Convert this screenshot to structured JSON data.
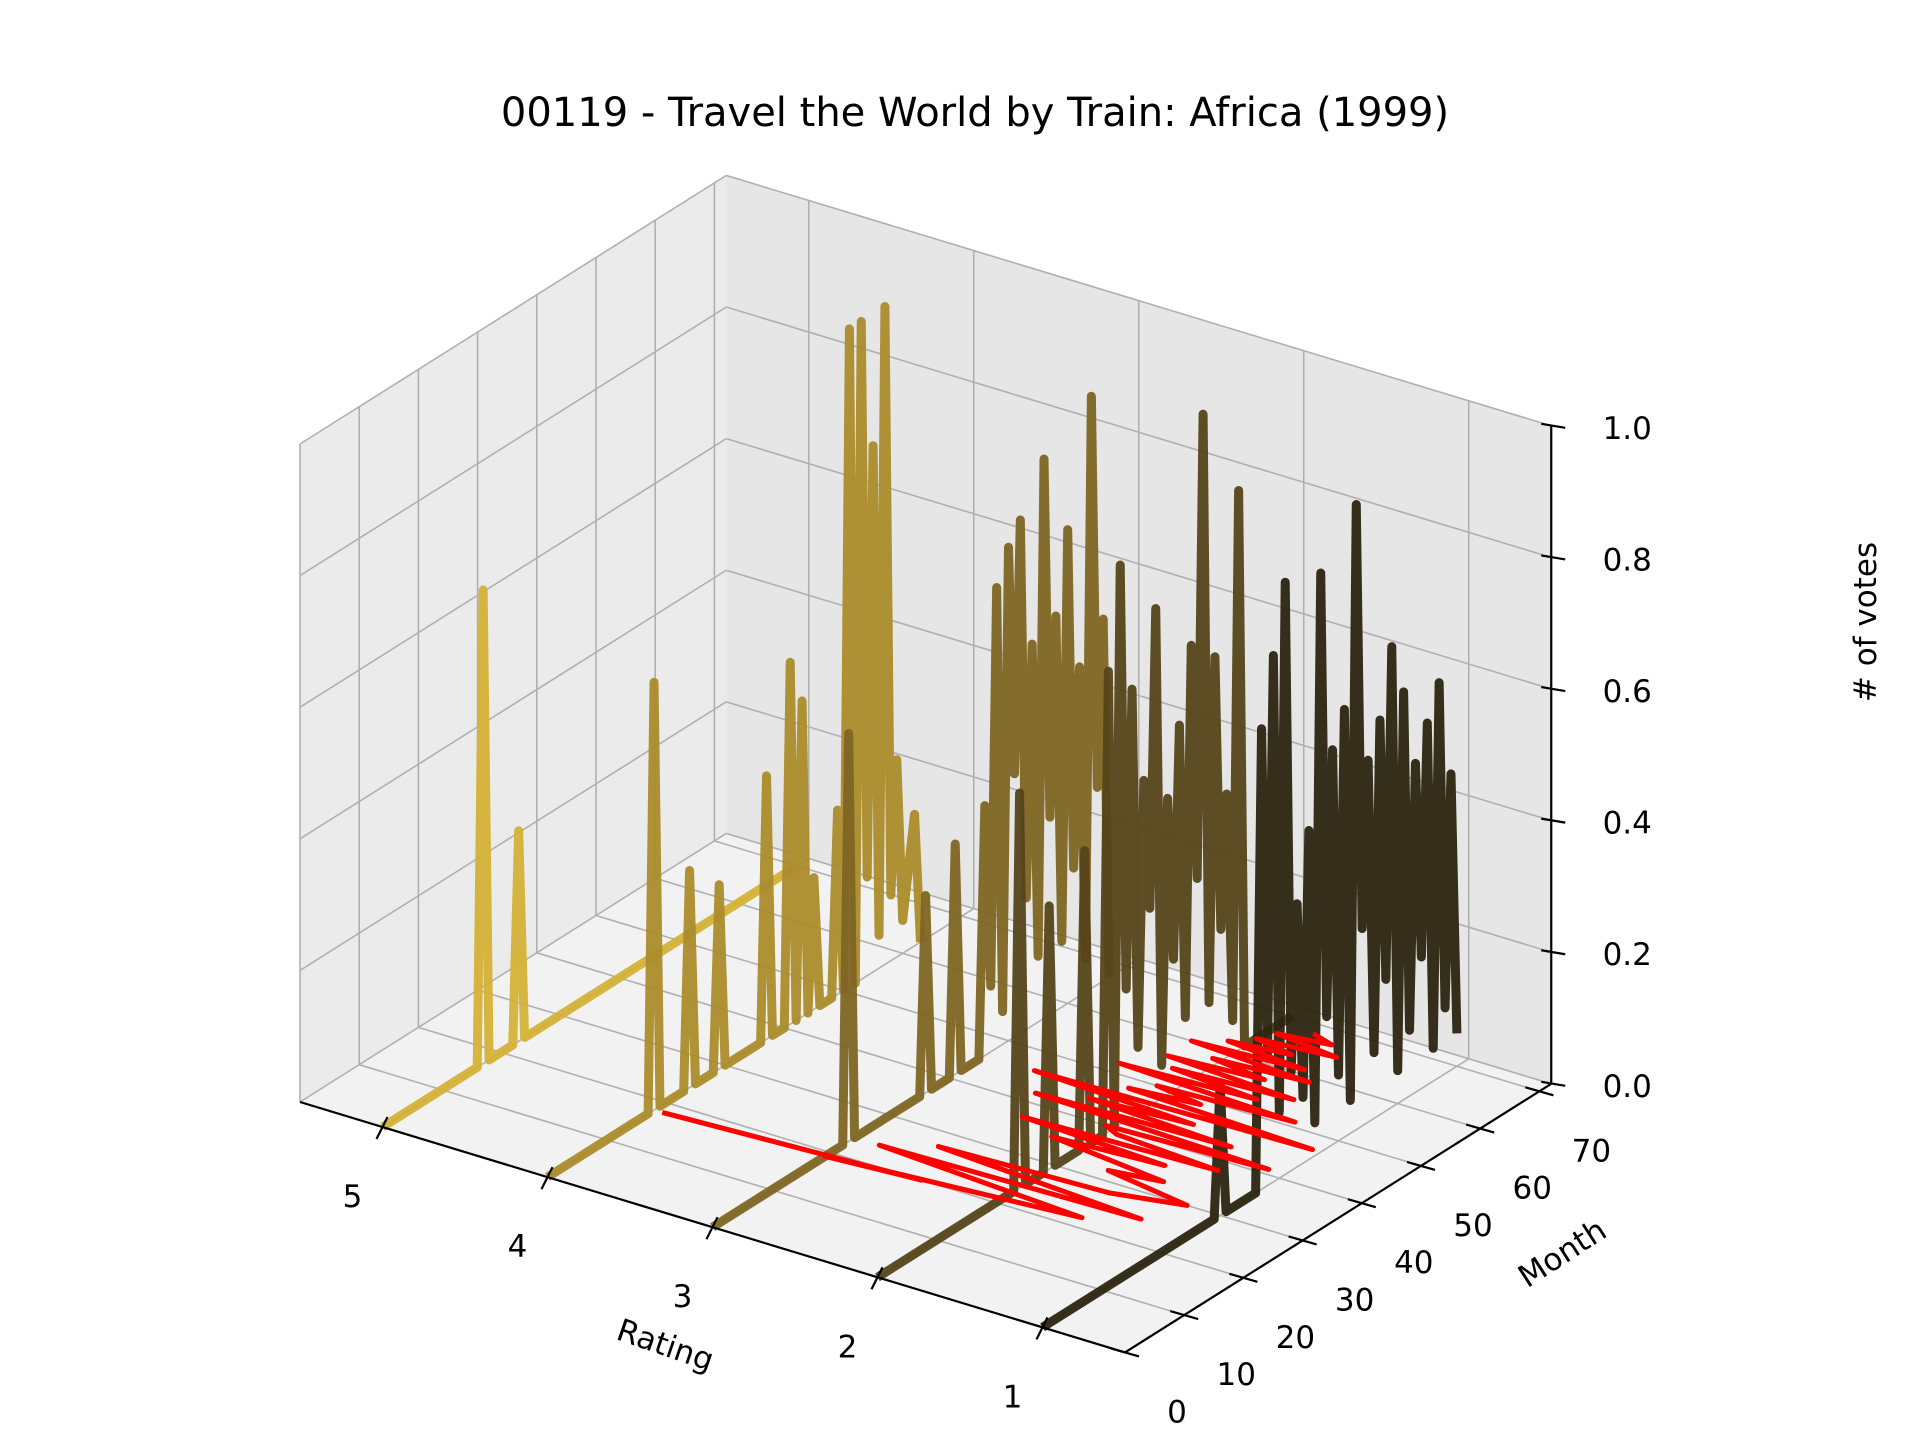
{
  "chart_data": {
    "type": "line",
    "projection": "3d",
    "title": "00119 - Travel the World by Train: Africa (1999)",
    "xlabel": "Rating",
    "ylabel": "Month",
    "zlabel": "# of votes",
    "x_ticks": [
      "5",
      "4",
      "3",
      "2",
      "1"
    ],
    "y_ticks": [
      "0",
      "10",
      "20",
      "30",
      "40",
      "50",
      "60",
      "70"
    ],
    "z_ticks": [
      "0.0",
      "0.2",
      "0.4",
      "0.6",
      "0.8",
      "1.0"
    ],
    "xlim": [
      0.5,
      5.5
    ],
    "ylim": [
      0,
      72
    ],
    "zlim": [
      0,
      1
    ],
    "grid": true,
    "series": [
      {
        "rating": 5,
        "color": "#d4b236",
        "points": [
          [
            0,
            0
          ],
          [
            16,
            0
          ],
          [
            17,
            0.72
          ],
          [
            18,
            0
          ],
          [
            22,
            0
          ],
          [
            23,
            0.32
          ],
          [
            24,
            0
          ],
          [
            70,
            0
          ]
        ]
      },
      {
        "rating": 4,
        "color": "#ab8b2b",
        "points": [
          [
            0,
            0
          ],
          [
            17,
            0
          ],
          [
            18,
            0.65
          ],
          [
            19,
            0
          ],
          [
            23,
            0
          ],
          [
            24,
            0.33
          ],
          [
            25,
            0
          ],
          [
            28,
            0
          ],
          [
            29,
            0.28
          ],
          [
            30,
            0
          ],
          [
            36,
            0
          ],
          [
            37,
            0.4
          ],
          [
            38,
            0
          ],
          [
            40,
            0
          ],
          [
            41,
            0.55
          ],
          [
            42,
            0
          ],
          [
            43,
            0.48
          ],
          [
            44,
            0
          ],
          [
            45,
            0.2
          ],
          [
            46,
            0
          ],
          [
            48,
            0
          ],
          [
            49,
            0.28
          ],
          [
            50,
            0
          ],
          [
            51,
            1.0
          ],
          [
            52,
            0
          ],
          [
            53,
            1.0
          ],
          [
            54,
            0.15
          ],
          [
            55,
            0.8
          ],
          [
            56,
            0.05
          ],
          [
            57,
            1.0
          ],
          [
            58,
            0.1
          ],
          [
            59,
            0.3
          ],
          [
            60,
            0.05
          ],
          [
            62,
            0.2
          ],
          [
            63,
            0
          ]
        ]
      },
      {
        "rating": 3,
        "color": "#7e6523",
        "points": [
          [
            0,
            0
          ],
          [
            22,
            0
          ],
          [
            23,
            0.62
          ],
          [
            24,
            0
          ],
          [
            35,
            0
          ],
          [
            36,
            0.3
          ],
          [
            37,
            0
          ],
          [
            40,
            0
          ],
          [
            41,
            0.35
          ],
          [
            42,
            0
          ],
          [
            45,
            0
          ],
          [
            46,
            0.38
          ],
          [
            47,
            0.1
          ],
          [
            48,
            0.7
          ],
          [
            49,
            0.05
          ],
          [
            50,
            0.75
          ],
          [
            51,
            0.4
          ],
          [
            52,
            0.78
          ],
          [
            53,
            0.2
          ],
          [
            54,
            0.58
          ],
          [
            55,
            0.1
          ],
          [
            56,
            0.85
          ],
          [
            57,
            0.3
          ],
          [
            58,
            0.6
          ],
          [
            59,
            0.1
          ],
          [
            60,
            0.72
          ],
          [
            61,
            0.2
          ],
          [
            62,
            0.5
          ],
          [
            63,
            0.05
          ],
          [
            64,
            0.9
          ],
          [
            65,
            0.3
          ],
          [
            66,
            0.55
          ],
          [
            67,
            0
          ]
        ]
      },
      {
        "rating": 2,
        "color": "#554519",
        "points": [
          [
            0,
            0
          ],
          [
            23,
            0
          ],
          [
            24,
            0.6
          ],
          [
            25,
            0
          ],
          [
            28,
            0
          ],
          [
            29,
            0.4
          ],
          [
            30,
            0
          ],
          [
            34,
            0
          ],
          [
            35,
            0.45
          ],
          [
            36,
            0
          ],
          [
            38,
            0
          ],
          [
            39,
            0.7
          ],
          [
            40,
            0
          ],
          [
            41,
            0.85
          ],
          [
            42,
            0.2
          ],
          [
            43,
            0.65
          ],
          [
            44,
            0.1
          ],
          [
            45,
            0.5
          ],
          [
            46,
            0.3
          ],
          [
            47,
            0.75
          ],
          [
            48,
            0.05
          ],
          [
            49,
            0.45
          ],
          [
            50,
            0.2
          ],
          [
            51,
            0.55
          ],
          [
            52,
            0.1
          ],
          [
            53,
            0.66
          ],
          [
            54,
            0.3
          ],
          [
            55,
            1.0
          ],
          [
            56,
            0.1
          ],
          [
            57,
            0.62
          ],
          [
            58,
            0.2
          ],
          [
            59,
            0.4
          ],
          [
            60,
            0.05
          ],
          [
            61,
            0.85
          ],
          [
            62,
            0
          ],
          [
            70,
            0
          ]
        ]
      },
      {
        "rating": 1,
        "color": "#2a2410",
        "points": [
          [
            0,
            0
          ],
          [
            29,
            0
          ],
          [
            30,
            0.2
          ],
          [
            31,
            0
          ],
          [
            36,
            0
          ],
          [
            37,
            0.7
          ],
          [
            38,
            0.2
          ],
          [
            39,
            0.8
          ],
          [
            40,
            0.1
          ],
          [
            41,
            0.9
          ],
          [
            42,
            0.15
          ],
          [
            43,
            0.4
          ],
          [
            44,
            0.1
          ],
          [
            45,
            0.5
          ],
          [
            46,
            0.05
          ],
          [
            47,
            0.88
          ],
          [
            48,
            0.2
          ],
          [
            49,
            0.6
          ],
          [
            50,
            0.1
          ],
          [
            51,
            0.65
          ],
          [
            52,
            0.05
          ],
          [
            53,
            0.95
          ],
          [
            54,
            0.3
          ],
          [
            55,
            0.55
          ],
          [
            56,
            0.1
          ],
          [
            57,
            0.6
          ],
          [
            58,
            0.2
          ],
          [
            59,
            0.7
          ],
          [
            60,
            0.05
          ],
          [
            61,
            0.62
          ],
          [
            62,
            0.1
          ],
          [
            63,
            0.5
          ],
          [
            64,
            0.2
          ],
          [
            65,
            0.55
          ],
          [
            66,
            0.05
          ],
          [
            67,
            0.6
          ],
          [
            68,
            0.1
          ],
          [
            69,
            0.45
          ],
          [
            70,
            0.05
          ]
        ]
      }
    ],
    "mean_rating_trace": {
      "color": "#ff0000",
      "description_values": [
        [
          18,
          3.95
        ],
        [
          20,
          2.45
        ],
        [
          19,
          3.0
        ],
        [
          22,
          1.55
        ],
        [
          24,
          2.85
        ],
        [
          25,
          1.3
        ],
        [
          27,
          2.6
        ],
        [
          28,
          1.6
        ],
        [
          30,
          1.2
        ],
        [
          32,
          1.75
        ],
        [
          33,
          1.45
        ],
        [
          35,
          2.2
        ],
        [
          36,
          1.55
        ],
        [
          37,
          2.45
        ],
        [
          38,
          1.3
        ],
        [
          39,
          1.95
        ],
        [
          40,
          2.05
        ],
        [
          41,
          1.1
        ],
        [
          42,
          2.55
        ],
        [
          43,
          1.4
        ],
        [
          44,
          2.3
        ],
        [
          45,
          1.7
        ],
        [
          46,
          2.7
        ],
        [
          47,
          1.05
        ],
        [
          48,
          2.2
        ],
        [
          49,
          1.8
        ],
        [
          50,
          2.1
        ],
        [
          51,
          1.3
        ],
        [
          52,
          2.4
        ],
        [
          53,
          1.6
        ],
        [
          54,
          2.15
        ],
        [
          55,
          1.45
        ],
        [
          56,
          2.25
        ],
        [
          57,
          1.7
        ],
        [
          58,
          2.05
        ],
        [
          59,
          1.5
        ],
        [
          60,
          2.25
        ],
        [
          61,
          1.6
        ],
        [
          62,
          2.1
        ],
        [
          63,
          1.75
        ],
        [
          64,
          2.0
        ],
        [
          65,
          1.55
        ],
        [
          66,
          1.95
        ],
        [
          67,
          1.65
        ],
        [
          68,
          1.8
        ]
      ]
    }
  }
}
